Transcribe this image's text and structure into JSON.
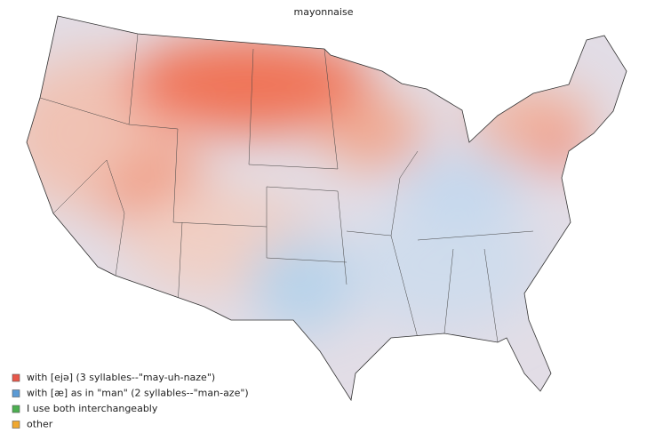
{
  "title": "mayonnaise",
  "legend": [
    {
      "label": "with [ejə] (3 syllables--\"may-uh-naze\")",
      "color": "#e8574a"
    },
    {
      "label": "with [æ] as in \"man\" (2 syllables--\"man-aze\")",
      "color": "#5b9bd5"
    },
    {
      "label": "I use both interchangeably",
      "color": "#4caf50"
    },
    {
      "label": "other",
      "color": "#f0a830"
    }
  ]
}
